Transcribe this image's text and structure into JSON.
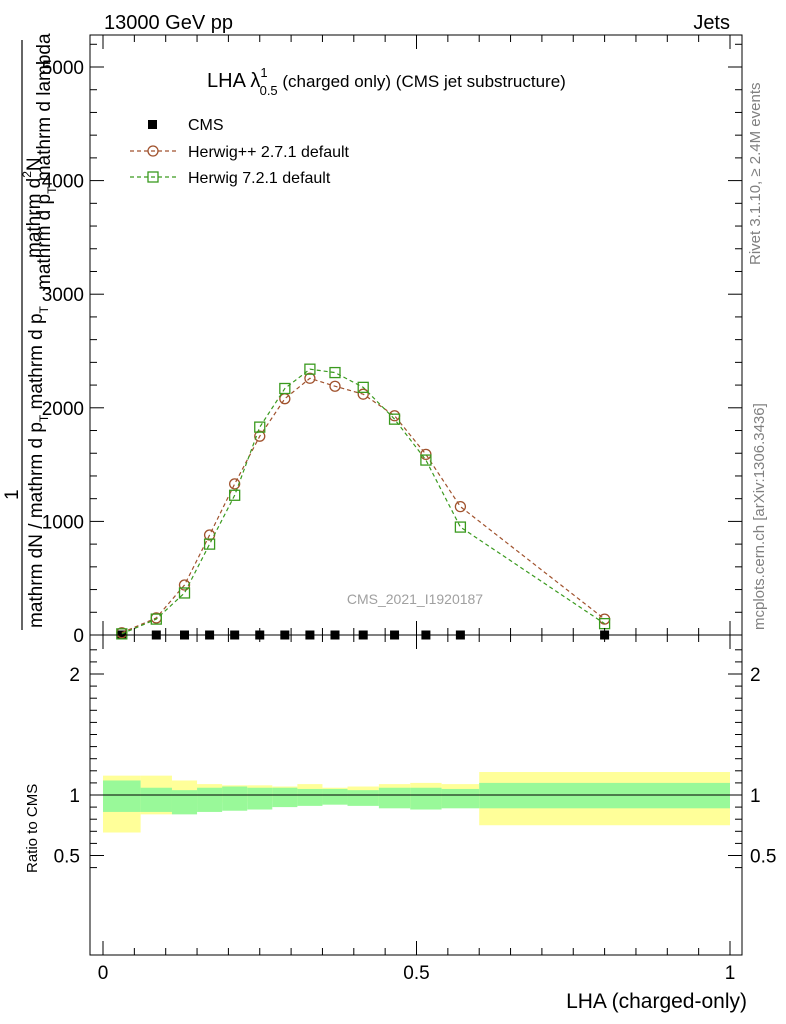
{
  "header": {
    "left": "13000 GeV pp",
    "right": "Jets"
  },
  "side_labels": {
    "rivet": "Rivet 3.1.10, ≥ 2.4M events",
    "mcplots": "mcplots.cern.ch [arXiv:1306.3436]"
  },
  "chart_data": [
    {
      "type": "line",
      "title": "LHA λ",
      "title_sup": "1",
      "title_sub": "0.5",
      "title_rest": " (charged only) (CMS jet substructure)",
      "watermark": "CMS_2021_I1920187",
      "ylabel_num_1": "mathrm d",
      "ylabel_num_sup": "2",
      "ylabel_num_2": "N",
      "ylabel_den_1": "mathrm d p",
      "ylabel_den_sub": "T",
      "ylabel_den_2": " mathrm d lambda",
      "ylabel_pre_1": "1",
      "ylabel_pre_2": "mathrm dN / mathrm d p",
      "ylabel_pre_sub": "T",
      "ylabel_pre_3": " mathrm d p",
      "ylabel_pre_sub2": "T",
      "xlim": [
        0,
        1
      ],
      "ylim": [
        0,
        5200
      ],
      "y_ticks": [
        0,
        1000,
        2000,
        3000,
        4000,
        5000
      ],
      "y_tick_labels": [
        "0",
        "1000",
        "2000",
        "3000",
        "4000",
        "5000"
      ],
      "legend_position": "top-left",
      "series": [
        {
          "name": "CMS",
          "color": "#000000",
          "marker": "filled-square",
          "x": [
            0.03,
            0.085,
            0.13,
            0.17,
            0.21,
            0.25,
            0.29,
            0.33,
            0.37,
            0.415,
            0.465,
            0.515,
            0.57,
            0.8
          ],
          "values": [
            0,
            0,
            0,
            0,
            0,
            0,
            0,
            0,
            0,
            0,
            0,
            0,
            0,
            0
          ]
        },
        {
          "name": "Herwig++ 2.7.1 default",
          "color": "#a0522d",
          "marker": "open-circle",
          "x": [
            0.03,
            0.085,
            0.13,
            0.17,
            0.21,
            0.25,
            0.29,
            0.33,
            0.37,
            0.415,
            0.465,
            0.515,
            0.57,
            0.8
          ],
          "values": [
            20,
            150,
            440,
            880,
            1330,
            1750,
            2080,
            2260,
            2190,
            2120,
            1930,
            1590,
            1130,
            140
          ]
        },
        {
          "name": "Herwig 7.2.1 default",
          "color": "#3a9a1e",
          "marker": "open-square",
          "x": [
            0.03,
            0.085,
            0.13,
            0.17,
            0.21,
            0.25,
            0.29,
            0.33,
            0.37,
            0.415,
            0.465,
            0.515,
            0.57,
            0.8
          ],
          "values": [
            10,
            140,
            370,
            800,
            1230,
            1830,
            2170,
            2340,
            2310,
            2180,
            1900,
            1540,
            950,
            100
          ]
        }
      ]
    },
    {
      "type": "area",
      "ylabel": "Ratio to CMS",
      "xlabel": "LHA (charged-only)",
      "xlim": [
        0,
        1
      ],
      "ylim": [
        0.35,
        2.3
      ],
      "x_ticks": [
        0,
        0.5,
        1
      ],
      "x_tick_labels": [
        "0",
        "0.5",
        "1"
      ],
      "y_ticks": [
        0.5,
        1,
        2
      ],
      "y_tick_labels": [
        "0.5",
        "1",
        "2"
      ],
      "reference_line": 1,
      "bins": [
        {
          "x0": 0.0,
          "x1": 0.06,
          "inner": [
            0.86,
            1.12
          ],
          "outer": [
            0.69,
            1.16
          ]
        },
        {
          "x0": 0.06,
          "x1": 0.11,
          "inner": [
            0.86,
            1.06
          ],
          "outer": [
            0.84,
            1.16
          ]
        },
        {
          "x0": 0.11,
          "x1": 0.15,
          "inner": [
            0.84,
            1.04
          ],
          "outer": [
            0.9,
            1.12
          ]
        },
        {
          "x0": 0.15,
          "x1": 0.19,
          "inner": [
            0.86,
            1.06
          ],
          "outer": [
            0.93,
            1.09
          ]
        },
        {
          "x0": 0.19,
          "x1": 0.23,
          "inner": [
            0.87,
            1.07
          ],
          "outer": [
            0.94,
            1.08
          ]
        },
        {
          "x0": 0.23,
          "x1": 0.27,
          "inner": [
            0.88,
            1.06
          ],
          "outer": [
            0.95,
            1.08
          ]
        },
        {
          "x0": 0.27,
          "x1": 0.31,
          "inner": [
            0.9,
            1.06
          ],
          "outer": [
            0.96,
            1.07
          ]
        },
        {
          "x0": 0.31,
          "x1": 0.35,
          "inner": [
            0.91,
            1.05
          ],
          "outer": [
            0.93,
            1.09
          ]
        },
        {
          "x0": 0.35,
          "x1": 0.39,
          "inner": [
            0.92,
            1.05
          ],
          "outer": [
            0.95,
            1.06
          ]
        },
        {
          "x0": 0.39,
          "x1": 0.44,
          "inner": [
            0.91,
            1.04
          ],
          "outer": [
            0.93,
            1.07
          ]
        },
        {
          "x0": 0.44,
          "x1": 0.49,
          "inner": [
            0.89,
            1.06
          ],
          "outer": [
            0.91,
            1.09
          ]
        },
        {
          "x0": 0.49,
          "x1": 0.54,
          "inner": [
            0.88,
            1.06
          ],
          "outer": [
            0.9,
            1.1
          ]
        },
        {
          "x0": 0.54,
          "x1": 0.6,
          "inner": [
            0.89,
            1.05
          ],
          "outer": [
            0.92,
            1.09
          ]
        },
        {
          "x0": 0.6,
          "x1": 1.0,
          "inner": [
            0.89,
            1.1
          ],
          "outer": [
            0.75,
            1.19
          ]
        }
      ]
    }
  ]
}
